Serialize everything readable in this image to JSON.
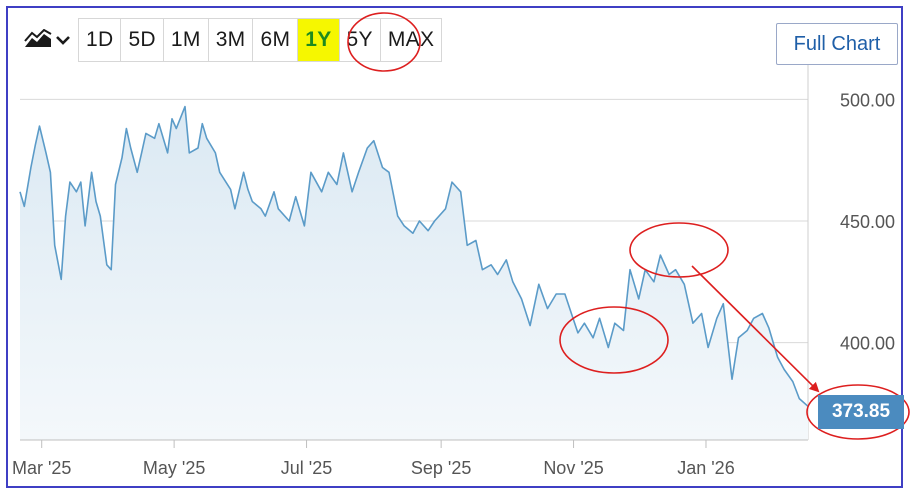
{
  "toolbar": {
    "chart_type_icon": "mountain-chart-icon",
    "ranges": [
      "1D",
      "5D",
      "1M",
      "3M",
      "6M",
      "1Y",
      "5Y",
      "MAX"
    ],
    "active_range": "1Y",
    "full_chart_label": "Full Chart"
  },
  "colors": {
    "line": "#5b9bc8",
    "area_top": "#dbe9f3",
    "area_bottom": "#f4f8fb",
    "annotation": "#dd1f1f",
    "price_tag": "#4b8bbf",
    "active_range_bg": "#f6f700",
    "frame": "#3f3fc4"
  },
  "last_price": "373.85",
  "chart_data": {
    "type": "area",
    "ylim": [
      360,
      510
    ],
    "yticks": [
      400,
      450,
      500
    ],
    "ytick_labels": [
      "400.00",
      "450.00",
      "500.00"
    ],
    "xtick_labels": [
      "Mar '25",
      "May '25",
      "Jul '25",
      "Sep '25",
      "Nov '25",
      "Jan '26"
    ],
    "xtick_dates": [
      "2025-03-01",
      "2025-05-01",
      "2025-07-01",
      "2025-09-01",
      "2025-11-01",
      "2026-01-01"
    ],
    "xlim": [
      "2025-02-19",
      "2026-02-17"
    ],
    "grid": true,
    "series": [
      {
        "x": [
          "2025-02-19",
          "2025-02-21",
          "2025-02-24",
          "2025-02-26",
          "2025-02-28",
          "2025-03-03",
          "2025-03-05",
          "2025-03-07",
          "2025-03-10",
          "2025-03-12",
          "2025-03-14",
          "2025-03-17",
          "2025-03-19",
          "2025-03-21",
          "2025-03-24",
          "2025-03-26",
          "2025-03-28",
          "2025-03-31",
          "2025-04-02",
          "2025-04-04",
          "2025-04-07",
          "2025-04-09",
          "2025-04-11",
          "2025-04-14",
          "2025-04-16",
          "2025-04-18",
          "2025-04-22",
          "2025-04-24",
          "2025-04-28",
          "2025-04-30",
          "2025-05-02",
          "2025-05-06",
          "2025-05-08",
          "2025-05-12",
          "2025-05-14",
          "2025-05-16",
          "2025-05-20",
          "2025-05-22",
          "2025-05-27",
          "2025-05-29",
          "2025-06-02",
          "2025-06-04",
          "2025-06-06",
          "2025-06-10",
          "2025-06-12",
          "2025-06-16",
          "2025-06-18",
          "2025-06-23",
          "2025-06-26",
          "2025-06-30",
          "2025-07-03",
          "2025-07-08",
          "2025-07-11",
          "2025-07-15",
          "2025-07-18",
          "2025-07-22",
          "2025-07-25",
          "2025-07-29",
          "2025-08-01",
          "2025-08-05",
          "2025-08-08",
          "2025-08-12",
          "2025-08-15",
          "2025-08-19",
          "2025-08-22",
          "2025-08-26",
          "2025-08-29",
          "2025-09-03",
          "2025-09-06",
          "2025-09-10",
          "2025-09-13",
          "2025-09-17",
          "2025-09-20",
          "2025-09-24",
          "2025-09-27",
          "2025-10-01",
          "2025-10-04",
          "2025-10-08",
          "2025-10-12",
          "2025-10-16",
          "2025-10-20",
          "2025-10-24",
          "2025-10-28",
          "2025-10-31",
          "2025-11-03",
          "2025-11-06",
          "2025-11-10",
          "2025-11-13",
          "2025-11-17",
          "2025-11-20",
          "2025-11-24",
          "2025-11-27",
          "2025-12-01",
          "2025-12-04",
          "2025-12-08",
          "2025-12-11",
          "2025-12-15",
          "2025-12-18",
          "2025-12-22",
          "2025-12-26",
          "2025-12-30",
          "2026-01-02",
          "2026-01-06",
          "2026-01-09",
          "2026-01-13",
          "2026-01-16",
          "2026-01-20",
          "2026-01-23",
          "2026-01-27",
          "2026-01-30",
          "2026-02-03",
          "2026-02-06",
          "2026-02-10",
          "2026-02-13",
          "2026-02-17"
        ],
        "values": [
          462,
          456,
          472,
          481,
          489,
          478,
          470,
          440,
          426,
          452,
          466,
          462,
          466,
          448,
          470,
          458,
          452,
          432,
          430,
          465,
          476,
          488,
          480,
          470,
          478,
          486,
          484,
          490,
          478,
          492,
          488,
          497,
          478,
          480,
          490,
          484,
          478,
          470,
          463,
          455,
          470,
          463,
          458,
          455,
          452,
          462,
          455,
          450,
          460,
          448,
          470,
          462,
          470,
          465,
          478,
          462,
          470,
          480,
          483,
          472,
          470,
          452,
          448,
          445,
          450,
          446,
          450,
          455,
          466,
          462,
          440,
          442,
          430,
          432,
          428,
          434,
          425,
          418,
          407,
          424,
          414,
          420,
          420,
          412,
          404,
          408,
          402,
          410,
          398,
          408,
          405,
          430,
          418,
          430,
          425,
          436,
          428,
          430,
          424,
          408,
          412,
          398,
          410,
          416,
          385,
          402,
          405,
          410,
          412,
          406,
          394,
          389,
          384,
          377,
          373.85
        ]
      }
    ]
  }
}
